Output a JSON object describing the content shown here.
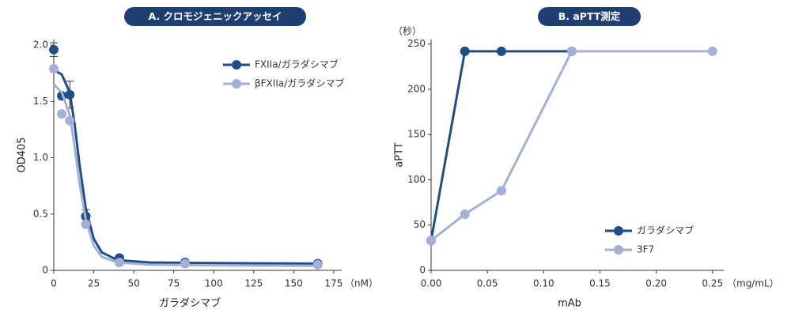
{
  "chart_data": [
    {
      "type": "scatter",
      "title": "A. クロモジェニックアッセイ",
      "x_label": "ガラダシマブ",
      "x_unit": "（nM）",
      "y_label": "OD405",
      "xlim": [
        0,
        180
      ],
      "xticks": [
        0,
        25,
        50,
        75,
        100,
        125,
        150,
        175
      ],
      "ylim": [
        0,
        2.05
      ],
      "yticks": [
        0,
        0.5,
        {
          "value": 1,
          "label": "1.0"
        },
        1.5,
        {
          "value": 2,
          "label": "2.0"
        }
      ],
      "legend": "upper right",
      "series": [
        {
          "name": "FXIIa/ガラダシマブ",
          "color": "#1f4e86",
          "x": [
            0,
            5,
            10,
            20,
            41,
            82,
            165
          ],
          "values": [
            1.96,
            1.55,
            1.56,
            0.48,
            0.11,
            0.07,
            0.06
          ],
          "errors": [
            0.06,
            null,
            0.12,
            0.06,
            null,
            null,
            null
          ],
          "curve_x": [
            0,
            5,
            10,
            13,
            16,
            20,
            25,
            30,
            40,
            60,
            100,
            165
          ],
          "curve_values": [
            1.78,
            1.74,
            1.58,
            1.3,
            0.95,
            0.55,
            0.28,
            0.16,
            0.09,
            0.07,
            0.065,
            0.06
          ]
        },
        {
          "name": "βFXIIa/ガラダシマブ",
          "color": "#a3afd8",
          "x": [
            0,
            5,
            10,
            20,
            41,
            82,
            165
          ],
          "values": [
            1.79,
            1.39,
            1.33,
            0.41,
            0.07,
            0.06,
            0.05
          ],
          "errors": [
            null,
            null,
            null,
            null,
            null,
            null,
            null
          ],
          "curve_x": [
            0,
            5,
            10,
            13,
            16,
            20,
            25,
            30,
            40,
            60,
            100,
            165
          ],
          "curve_values": [
            1.65,
            1.58,
            1.38,
            1.1,
            0.78,
            0.45,
            0.22,
            0.12,
            0.07,
            0.05,
            0.045,
            0.04
          ]
        }
      ]
    },
    {
      "type": "line",
      "title": "B. aPTT測定",
      "x_label": "mAb",
      "x_unit": "（mg/mL）",
      "y_label": "aPTT",
      "y_unit": "（秒）",
      "xlim": [
        0,
        0.26
      ],
      "xticks": [
        {
          "value": 0,
          "label": "0.00"
        },
        {
          "value": 0.05,
          "label": "0.05"
        },
        {
          "value": 0.1,
          "label": "0.10"
        },
        {
          "value": 0.15,
          "label": "0.15"
        },
        {
          "value": 0.2,
          "label": "0.20"
        },
        {
          "value": 0.25,
          "label": "0.25"
        }
      ],
      "ylim": [
        0,
        255
      ],
      "yticks": [
        0,
        50,
        100,
        150,
        200,
        250
      ],
      "legend": "lower right",
      "series": [
        {
          "name": "ガラダシマブ",
          "color": "#1f4e86",
          "x": [
            0,
            0.03,
            0.0625,
            0.125,
            0.25
          ],
          "values": [
            33,
            242,
            242,
            242,
            null
          ]
        },
        {
          "name": "3F7",
          "color": "#a3afd8",
          "x": [
            0,
            0.03,
            0.0625,
            0.125,
            0.25
          ],
          "values": [
            33,
            62,
            88,
            242,
            242
          ]
        }
      ]
    }
  ]
}
